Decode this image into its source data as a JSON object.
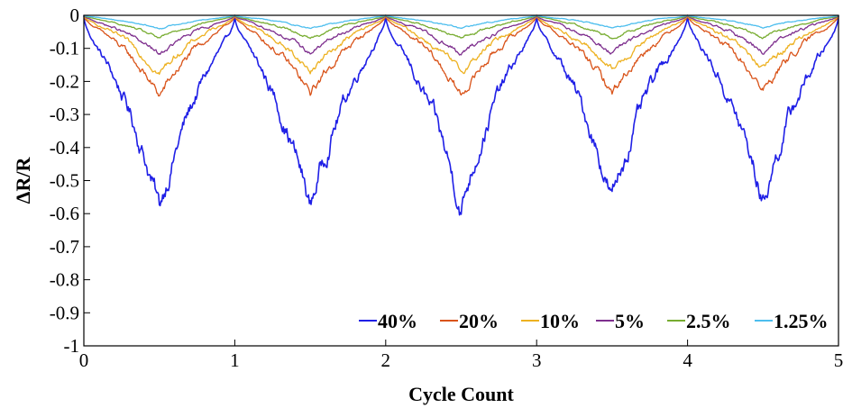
{
  "chart_data": {
    "type": "line",
    "title": "",
    "xlabel": "Cycle Count",
    "ylabel": "ΔR/R",
    "xlim": [
      0,
      5
    ],
    "ylim": [
      -1,
      0
    ],
    "xticks": [
      0,
      1,
      2,
      3,
      4,
      5
    ],
    "xtick_labels": [
      "0",
      "1",
      "2",
      "3",
      "4",
      "5"
    ],
    "yticks": [
      0,
      -0.1,
      -0.2,
      -0.3,
      -0.4,
      -0.5,
      -0.6,
      -0.7,
      -0.8,
      -0.9,
      -1
    ],
    "ytick_labels": [
      "0",
      "-0.1",
      "-0.2",
      "-0.3",
      "-0.4",
      "-0.5",
      "-0.6",
      "-0.7",
      "-0.8",
      "-0.9",
      "-1"
    ],
    "grid": false,
    "legend_position": "bottom-right",
    "cycles": 5,
    "series": [
      {
        "name": "40%",
        "color": "#1f1fe6",
        "peak_values": [
          -0.585,
          -0.58,
          -0.585,
          -0.56,
          -0.565
        ]
      },
      {
        "name": "20%",
        "color": "#d95319",
        "peak_values": [
          -0.245,
          -0.24,
          -0.245,
          -0.235,
          -0.23
        ]
      },
      {
        "name": "10%",
        "color": "#edb120",
        "peak_values": [
          -0.175,
          -0.17,
          -0.175,
          -0.17,
          -0.165
        ]
      },
      {
        "name": "5%",
        "color": "#7e2f8e",
        "peak_values": [
          -0.12,
          -0.115,
          -0.12,
          -0.115,
          -0.11
        ]
      },
      {
        "name": "2.5%",
        "color": "#77ac30",
        "peak_values": [
          -0.07,
          -0.07,
          -0.07,
          -0.068,
          -0.068
        ]
      },
      {
        "name": "1.25%",
        "color": "#4dbeee",
        "peak_values": [
          -0.04,
          -0.04,
          -0.04,
          -0.038,
          -0.038
        ]
      }
    ]
  }
}
